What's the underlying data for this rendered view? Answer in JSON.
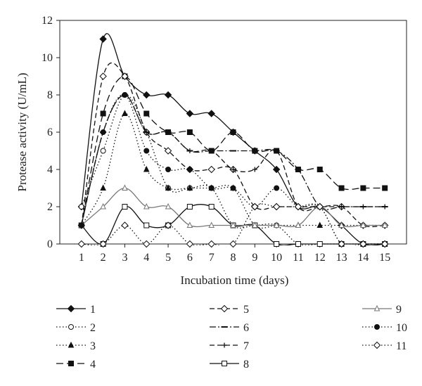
{
  "chart_data": {
    "type": "line",
    "title": "",
    "xlabel": "Incubation time (days)",
    "ylabel": "Protease activity (U/mL)",
    "x": [
      1,
      2,
      3,
      4,
      5,
      6,
      7,
      8,
      9,
      10,
      11,
      12,
      13,
      14,
      15
    ],
    "xlim": [
      0,
      16
    ],
    "ylim": [
      0,
      12
    ],
    "yticks": [
      0,
      2,
      4,
      6,
      8,
      10,
      12
    ],
    "xticks": [
      1,
      2,
      3,
      4,
      5,
      6,
      7,
      8,
      9,
      10,
      11,
      12,
      13,
      14,
      15
    ],
    "grid": false,
    "legend_position": "bottom",
    "series": [
      {
        "name": "1",
        "dash": "solid",
        "marker": "diamond-filled",
        "color": "#111111",
        "values": [
          2,
          11,
          9,
          8,
          8,
          7,
          7,
          6,
          5,
          4,
          2,
          2,
          1,
          0,
          0
        ]
      },
      {
        "name": "2",
        "dash": "dotted",
        "marker": "circle-open",
        "color": "#111111",
        "values": [
          2,
          5,
          8,
          6,
          3,
          3,
          3,
          1,
          1,
          1,
          0,
          0,
          0,
          0,
          0
        ]
      },
      {
        "name": "3",
        "dash": "dotted",
        "marker": "triangle-filled",
        "color": "#111111",
        "values": [
          1,
          3,
          7,
          4,
          3,
          3,
          3,
          3,
          1,
          1,
          1,
          1,
          1,
          1,
          1
        ]
      },
      {
        "name": "4",
        "dash": "longdash",
        "marker": "square-filled",
        "color": "#111111",
        "values": [
          1,
          7,
          9,
          7,
          6,
          6,
          5,
          6,
          5,
          5,
          4,
          4,
          3,
          3,
          3
        ]
      },
      {
        "name": "5",
        "dash": "dashed",
        "marker": "diamond-open",
        "color": "#111111",
        "values": [
          1,
          9,
          9,
          6,
          5,
          4,
          4,
          4,
          2,
          2,
          2,
          2,
          2,
          1,
          1
        ]
      },
      {
        "name": "6",
        "dash": "dashdot",
        "marker": "dash",
        "color": "#111111",
        "values": [
          1,
          6,
          8,
          6,
          6,
          5,
          5,
          5,
          5,
          5,
          4,
          2,
          2,
          2,
          2
        ]
      },
      {
        "name": "7",
        "dash": "dashed",
        "marker": "plus",
        "color": "#111111",
        "values": [
          1,
          6,
          8,
          6,
          6,
          5,
          5,
          4,
          4,
          5,
          2,
          2,
          2,
          2,
          2
        ]
      },
      {
        "name": "8",
        "dash": "solid",
        "marker": "square-open",
        "color": "#111111",
        "values": [
          1,
          0,
          2,
          1,
          1,
          2,
          2,
          1,
          1,
          0,
          0,
          0,
          0,
          0,
          0
        ]
      },
      {
        "name": "9",
        "dash": "solid",
        "marker": "triangle-open",
        "color": "#777777",
        "values": [
          1,
          2,
          3,
          2,
          2,
          1,
          1,
          1,
          1,
          1,
          1,
          2,
          1,
          1,
          1
        ]
      },
      {
        "name": "10",
        "dash": "dotted",
        "marker": "circle-filled",
        "color": "#111111",
        "values": [
          1,
          6,
          8,
          5,
          4,
          4,
          3,
          3,
          2,
          3,
          2,
          2,
          0,
          0,
          0
        ]
      },
      {
        "name": "11",
        "dash": "dotted",
        "marker": "diamond-open",
        "color": "#111111",
        "values": [
          0,
          0,
          1,
          0,
          1,
          0,
          0,
          0,
          2,
          2,
          2,
          2,
          0,
          0,
          0
        ]
      }
    ]
  }
}
